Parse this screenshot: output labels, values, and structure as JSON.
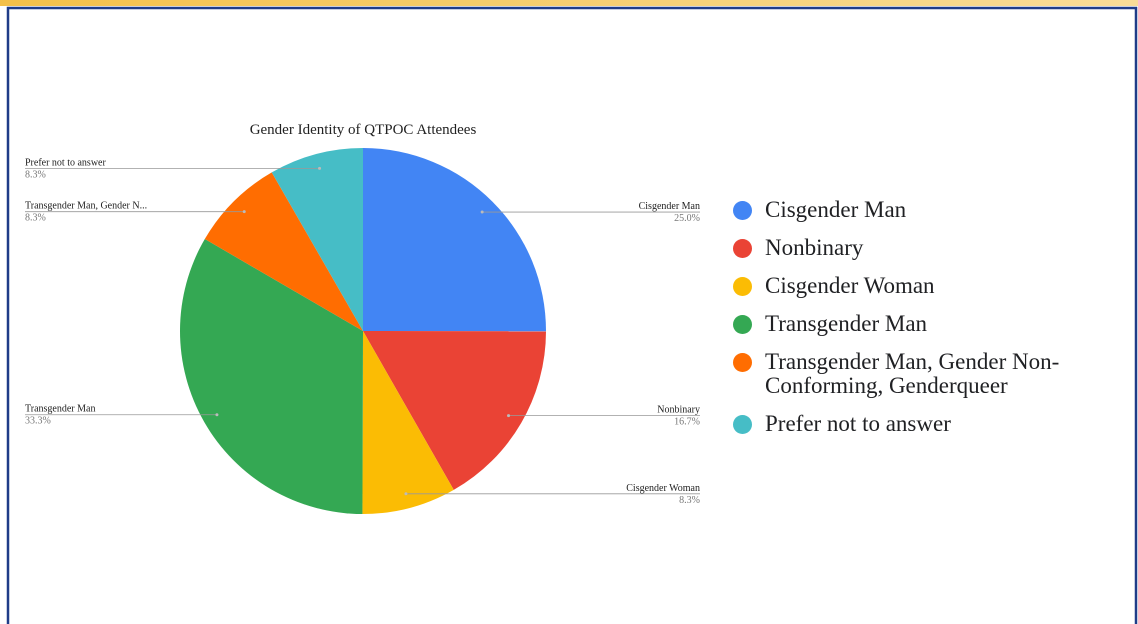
{
  "chart_data": {
    "type": "pie",
    "title": "Gender Identity of QTPOC Attendees",
    "categories": [
      "Cisgender Man",
      "Nonbinary",
      "Cisgender Woman",
      "Transgender Man",
      "Transgender Man, Gender Non-Conforming, Genderqueer",
      "Prefer not to answer"
    ],
    "slice_labels": [
      "Cisgender Man",
      "Nonbinary",
      "Cisgender Woman",
      "Transgender Man",
      "Transgender Man, Gender N...",
      "Prefer not to answer"
    ],
    "values": [
      25.0,
      16.7,
      8.3,
      33.3,
      8.3,
      8.3
    ],
    "value_labels": [
      "25.0%",
      "16.7%",
      "8.3%",
      "33.3%",
      "8.3%",
      "8.3%"
    ],
    "colors": [
      "#4285f4",
      "#ea4335",
      "#fbbc04",
      "#34a853",
      "#ff6d01",
      "#46bdc6"
    ],
    "legend": "right"
  }
}
